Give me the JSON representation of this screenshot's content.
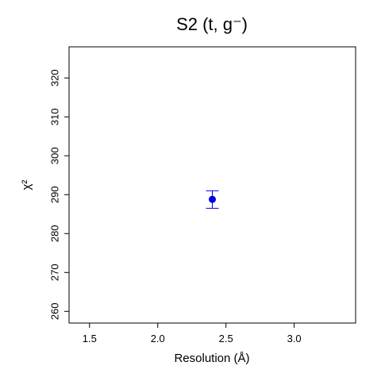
{
  "chart_data": {
    "type": "scatter",
    "title": "S2  (t, g⁻)",
    "xlabel": "Resolution (Å)",
    "ylabel": "χ²",
    "xlim": [
      1.35,
      3.45
    ],
    "ylim": [
      257,
      328
    ],
    "xticks": [
      "1.5",
      "2.0",
      "2.5",
      "3.0"
    ],
    "yticks": [
      "260",
      "270",
      "280",
      "290",
      "300",
      "310",
      "320"
    ],
    "grid": false,
    "points": [
      {
        "x": 2.4,
        "y": 288.8,
        "ylow": 286.5,
        "yhigh": 291.0
      }
    ],
    "colors": {
      "point": "#0000dd",
      "errorbar": "#0000dd",
      "axis": "#000000"
    }
  }
}
